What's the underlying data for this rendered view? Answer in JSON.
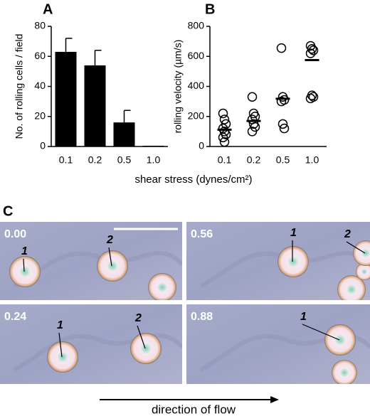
{
  "chart_data": [
    {
      "type": "bar",
      "panel": "A",
      "ylabel": "No. of rolling cells / field",
      "categories": [
        "0.1",
        "0.2",
        "0.5",
        "1.0"
      ],
      "values": [
        63,
        54,
        16,
        0.5
      ],
      "errors": [
        9,
        10,
        8,
        0
      ],
      "color": "#000000",
      "ylim": [
        0,
        80
      ],
      "yticks": [
        0,
        20,
        40,
        60,
        80
      ]
    },
    {
      "type": "strip",
      "panel": "B",
      "ylabel": "rolling velocity (µm/s)",
      "categories": [
        "0.1",
        "0.2",
        "0.5",
        "1.0"
      ],
      "points": [
        [
          220,
          180,
          150,
          120,
          100,
          80,
          60,
          30
        ],
        [
          330,
          220,
          200,
          180,
          150,
          130,
          100
        ],
        [
          655,
          330,
          310,
          300,
          150,
          120
        ],
        [
          670,
          650,
          640,
          620,
          340,
          330,
          320
        ]
      ],
      "means": [
        112,
        170,
        318,
        575
      ],
      "ylim": [
        0,
        800
      ],
      "yticks": [
        0,
        200,
        400,
        600,
        800
      ]
    }
  ],
  "shared_xlabel": "shear stress (dynes/cm²)",
  "panel_c": {
    "label": "C",
    "micrographs": [
      {
        "time": "0.00",
        "cells": [
          "1",
          "2"
        ]
      },
      {
        "time": "0.56",
        "cells": [
          "1",
          "2"
        ]
      },
      {
        "time": "0.24",
        "cells": [
          "1",
          "2"
        ]
      },
      {
        "time": "0.88",
        "cells": [
          "1"
        ]
      }
    ],
    "arrow_label": "direction of flow"
  }
}
